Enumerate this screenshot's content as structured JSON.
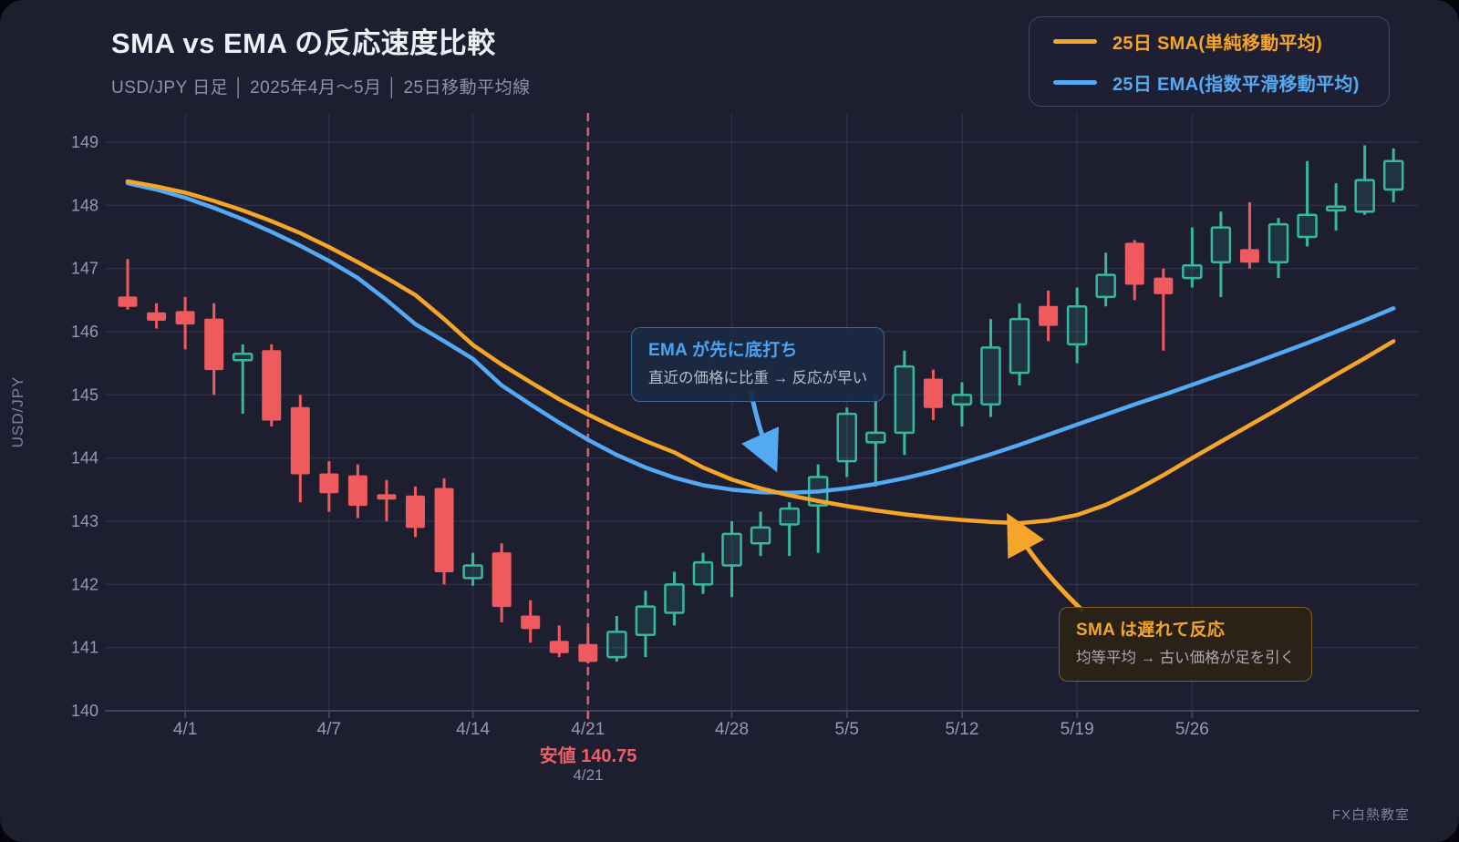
{
  "page": {
    "title": "SMA vs EMA の反応速度比較",
    "subtitle": "USD/JPY 日足 │ 2025年4月〜5月 │ 25日移動平均線",
    "watermark": "FX白熱教室"
  },
  "y_axis_title": "USD/JPY",
  "legend": {
    "items": [
      {
        "id": "sma",
        "label": "25日 SMA(単純移動平均)",
        "color": "#f5a628"
      },
      {
        "id": "ema",
        "label": "25日 EMA(指数平滑移動平均)",
        "color": "#54aaf2"
      }
    ]
  },
  "annotations": {
    "ema": {
      "title": "EMA が先に底打ち",
      "body": "直近の価格に比重 → 反応が早い",
      "color": "#54aaf2"
    },
    "sma": {
      "title": "SMA は遅れて反応",
      "body": "均等平均 → 古い価格が足を引く",
      "color": "#f5a628"
    }
  },
  "low_marker": {
    "label": "安値 140.75",
    "date": "4/21"
  },
  "chart_data": {
    "type": "candlestick",
    "title": "SMA vs EMA の反応速度比較",
    "ylabel": "USD/JPY",
    "ylim": [
      140,
      149
    ],
    "y_ticks": [
      140,
      141,
      142,
      143,
      144,
      145,
      146,
      147,
      148,
      149
    ],
    "x_ticks": [
      {
        "i": 2,
        "label": "4/1"
      },
      {
        "i": 7,
        "label": "4/7"
      },
      {
        "i": 12,
        "label": "4/14"
      },
      {
        "i": 16,
        "label": "4/21"
      },
      {
        "i": 21,
        "label": "4/28"
      },
      {
        "i": 25,
        "label": "5/5"
      },
      {
        "i": 29,
        "label": "5/12"
      },
      {
        "i": 33,
        "label": "5/19"
      },
      {
        "i": 37,
        "label": "5/26"
      }
    ],
    "marker": {
      "index": 16,
      "low": 140.75
    },
    "candles": [
      [
        146.55,
        147.15,
        146.35,
        146.4
      ],
      [
        146.3,
        146.45,
        146.05,
        146.18
      ],
      [
        146.32,
        146.55,
        145.72,
        146.12
      ],
      [
        146.2,
        146.45,
        145.0,
        145.4
      ],
      [
        145.55,
        145.8,
        144.7,
        145.65
      ],
      [
        145.7,
        145.8,
        144.5,
        144.6
      ],
      [
        144.8,
        145.0,
        143.3,
        143.75
      ],
      [
        143.75,
        143.95,
        143.15,
        143.45
      ],
      [
        143.72,
        143.9,
        143.05,
        143.25
      ],
      [
        143.42,
        143.65,
        143.0,
        143.35
      ],
      [
        143.4,
        143.55,
        142.75,
        142.9
      ],
      [
        143.52,
        143.68,
        142.0,
        142.2
      ],
      [
        142.1,
        142.5,
        141.98,
        142.3
      ],
      [
        142.5,
        142.65,
        141.4,
        141.65
      ],
      [
        141.5,
        141.75,
        141.08,
        141.3
      ],
      [
        141.1,
        141.35,
        140.85,
        140.92
      ],
      [
        141.05,
        141.32,
        140.75,
        140.78
      ],
      [
        140.85,
        141.5,
        140.78,
        141.25
      ],
      [
        141.2,
        141.9,
        140.85,
        141.65
      ],
      [
        141.55,
        142.2,
        141.35,
        142.0
      ],
      [
        142.0,
        142.5,
        141.85,
        142.35
      ],
      [
        142.3,
        143.0,
        141.8,
        142.8
      ],
      [
        142.65,
        143.15,
        142.45,
        142.9
      ],
      [
        142.95,
        143.3,
        142.45,
        143.2
      ],
      [
        143.25,
        143.9,
        142.5,
        143.7
      ],
      [
        143.95,
        144.8,
        143.7,
        144.7
      ],
      [
        144.25,
        145.0,
        143.55,
        144.4
      ],
      [
        144.4,
        145.7,
        144.05,
        145.45
      ],
      [
        145.25,
        145.4,
        144.6,
        144.8
      ],
      [
        144.85,
        145.2,
        144.5,
        145.0
      ],
      [
        144.85,
        146.2,
        144.65,
        145.75
      ],
      [
        145.35,
        146.45,
        145.15,
        146.2
      ],
      [
        146.4,
        146.65,
        145.85,
        146.1
      ],
      [
        145.8,
        146.7,
        145.5,
        146.4
      ],
      [
        146.55,
        147.25,
        146.4,
        146.9
      ],
      [
        147.4,
        147.45,
        146.5,
        146.75
      ],
      [
        146.85,
        147.0,
        145.7,
        146.6
      ],
      [
        146.85,
        147.65,
        146.7,
        147.05
      ],
      [
        147.1,
        147.9,
        146.55,
        147.65
      ],
      [
        147.3,
        148.05,
        147.0,
        147.1
      ],
      [
        147.1,
        147.8,
        146.85,
        147.7
      ],
      [
        147.5,
        148.7,
        147.35,
        147.85
      ],
      [
        147.92,
        148.35,
        147.6,
        147.98
      ],
      [
        147.9,
        148.95,
        147.85,
        148.4
      ],
      [
        148.25,
        148.9,
        148.05,
        148.7
      ]
    ],
    "series": [
      {
        "name": "25日 SMA(単純移動平均)",
        "color": "#f5a628",
        "values": [
          148.38,
          148.3,
          148.2,
          148.07,
          147.92,
          147.75,
          147.56,
          147.34,
          147.1,
          146.85,
          146.58,
          146.2,
          145.79,
          145.48,
          145.2,
          144.93,
          144.69,
          144.47,
          144.27,
          144.09,
          143.85,
          143.66,
          143.52,
          143.41,
          143.32,
          143.24,
          143.17,
          143.11,
          143.06,
          143.02,
          142.99,
          142.97,
          143.01,
          143.1,
          143.26,
          143.48,
          143.73,
          144.0,
          144.26,
          144.52,
          144.78,
          145.05,
          145.32,
          145.58,
          145.85
        ]
      },
      {
        "name": "25日 EMA(指数平滑移動平均)",
        "color": "#54aaf2",
        "values": [
          148.35,
          148.25,
          148.12,
          147.96,
          147.78,
          147.58,
          147.36,
          147.12,
          146.85,
          146.5,
          146.12,
          145.85,
          145.57,
          145.15,
          144.85,
          144.56,
          144.29,
          144.05,
          143.85,
          143.69,
          143.57,
          143.5,
          143.46,
          143.45,
          143.47,
          143.52,
          143.59,
          143.68,
          143.79,
          143.92,
          144.06,
          144.21,
          144.37,
          144.53,
          144.69,
          144.85,
          145.0,
          145.16,
          145.32,
          145.48,
          145.65,
          145.82,
          146.0,
          146.18,
          146.37
        ]
      }
    ],
    "palette": {
      "up": "#35b99c",
      "up_fill": "rgba(53,185,156,0.14)",
      "down": "#ee5a5e",
      "grid": "rgba(150,160,215,0.13)",
      "axis": "#41435f",
      "tick_text": "#9599b2",
      "marker_line": "#e25f5f"
    },
    "legend_position": "top-right",
    "grid": true
  }
}
